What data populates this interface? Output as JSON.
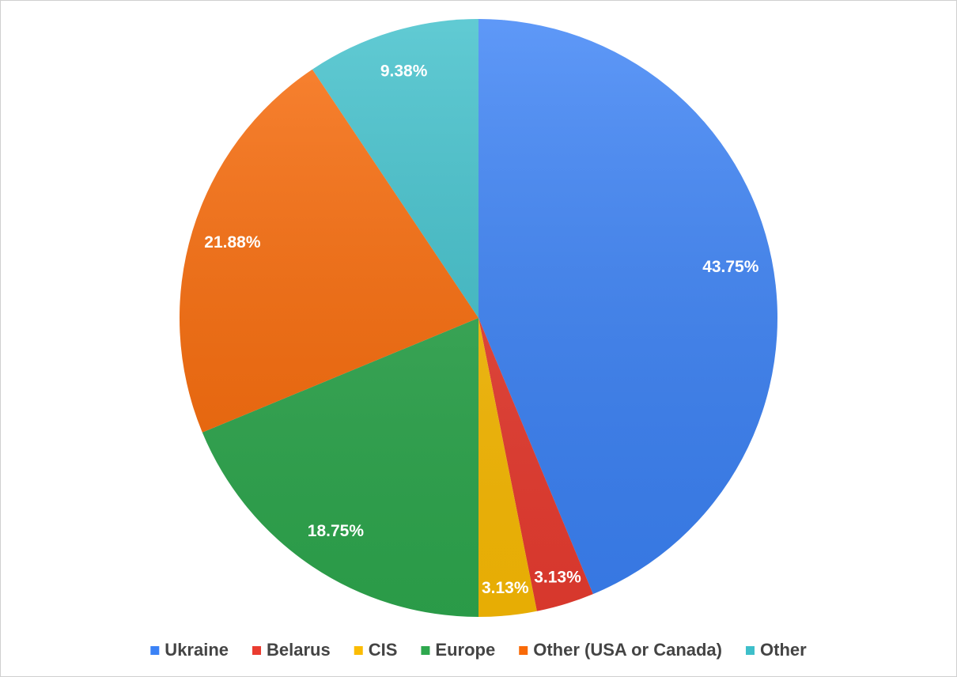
{
  "chart_data": {
    "type": "pie",
    "categories": [
      "Ukraine",
      "Belarus",
      "CIS",
      "Europe",
      "Other (USA or Canada)",
      "Other"
    ],
    "values": [
      43.75,
      3.13,
      3.13,
      18.75,
      21.88,
      9.38
    ],
    "value_labels": [
      "43.75%",
      "3.13%",
      "3.13%",
      "18.75%",
      "21.88%",
      "9.38%"
    ],
    "colors": [
      "#3b82f6",
      "#ea3c30",
      "#fbbc04",
      "#2ea84e",
      "#f96a08",
      "#3ebfca"
    ],
    "legend": "bottom"
  }
}
